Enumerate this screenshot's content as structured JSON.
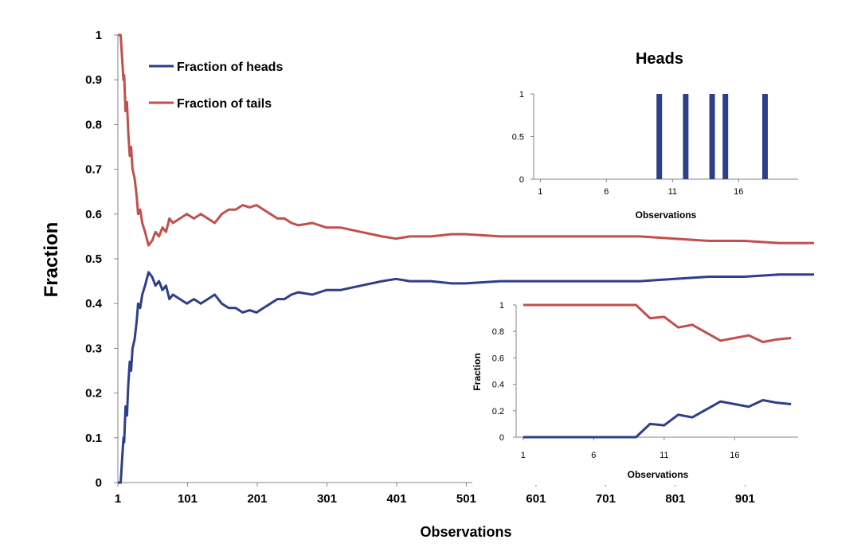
{
  "chart_data": [
    {
      "type": "line",
      "title": "",
      "xlabel": "Observations",
      "ylabel": "Fraction",
      "xlim": [
        1,
        1000
      ],
      "ylim": [
        0,
        1
      ],
      "x_ticks": [
        "1",
        "101",
        "201",
        "301",
        "401",
        "501",
        "601",
        "701",
        "801",
        "901"
      ],
      "y_ticks": [
        "0",
        "0.1",
        "0.2",
        "0.3",
        "0.4",
        "0.5",
        "0.6",
        "0.7",
        "0.8",
        "0.9",
        "1"
      ],
      "grid": false,
      "legend_position": "top-left",
      "colors": {
        "heads": "#2e3f8a",
        "tails": "#c0504d"
      },
      "series": [
        {
          "name": "Fraction of heads",
          "x": [
            1,
            5,
            9,
            10,
            12,
            14,
            16,
            18,
            20,
            22,
            25,
            28,
            30,
            33,
            36,
            40,
            45,
            50,
            55,
            60,
            65,
            70,
            75,
            80,
            90,
            100,
            110,
            120,
            130,
            140,
            150,
            160,
            170,
            180,
            190,
            200,
            210,
            220,
            230,
            240,
            250,
            260,
            280,
            300,
            320,
            350,
            380,
            400,
            420,
            450,
            480,
            500,
            550,
            600,
            650,
            700,
            750,
            800,
            850,
            900,
            950,
            1000
          ],
          "values": [
            0,
            0,
            0.1,
            0.09,
            0.17,
            0.15,
            0.22,
            0.27,
            0.25,
            0.3,
            0.32,
            0.36,
            0.4,
            0.39,
            0.42,
            0.44,
            0.47,
            0.46,
            0.44,
            0.45,
            0.43,
            0.44,
            0.41,
            0.42,
            0.41,
            0.4,
            0.41,
            0.4,
            0.41,
            0.42,
            0.4,
            0.39,
            0.39,
            0.38,
            0.385,
            0.38,
            0.39,
            0.4,
            0.41,
            0.41,
            0.42,
            0.425,
            0.42,
            0.43,
            0.43,
            0.44,
            0.45,
            0.455,
            0.45,
            0.45,
            0.445,
            0.445,
            0.45,
            0.45,
            0.45,
            0.45,
            0.45,
            0.455,
            0.46,
            0.46,
            0.465,
            0.465
          ]
        },
        {
          "name": "Fraction of tails",
          "x": [
            1,
            5,
            9,
            10,
            12,
            14,
            16,
            18,
            20,
            22,
            25,
            28,
            30,
            33,
            36,
            40,
            45,
            50,
            55,
            60,
            65,
            70,
            75,
            80,
            90,
            100,
            110,
            120,
            130,
            140,
            150,
            160,
            170,
            180,
            190,
            200,
            210,
            220,
            230,
            240,
            250,
            260,
            280,
            300,
            320,
            350,
            380,
            400,
            420,
            450,
            480,
            500,
            550,
            600,
            650,
            700,
            750,
            800,
            850,
            900,
            950,
            1000
          ],
          "values": [
            1,
            1,
            0.9,
            0.91,
            0.83,
            0.85,
            0.78,
            0.73,
            0.75,
            0.7,
            0.68,
            0.64,
            0.6,
            0.61,
            0.58,
            0.56,
            0.53,
            0.54,
            0.56,
            0.55,
            0.57,
            0.56,
            0.59,
            0.58,
            0.59,
            0.6,
            0.59,
            0.6,
            0.59,
            0.58,
            0.6,
            0.61,
            0.61,
            0.62,
            0.615,
            0.62,
            0.61,
            0.6,
            0.59,
            0.59,
            0.58,
            0.575,
            0.58,
            0.57,
            0.57,
            0.56,
            0.55,
            0.545,
            0.55,
            0.55,
            0.555,
            0.555,
            0.55,
            0.55,
            0.55,
            0.55,
            0.55,
            0.545,
            0.54,
            0.54,
            0.535,
            0.535
          ]
        }
      ]
    },
    {
      "type": "bar",
      "title": "Heads",
      "xlabel": "Observations",
      "ylabel": "",
      "xlim": [
        1,
        20
      ],
      "ylim": [
        0,
        1
      ],
      "x_ticks": [
        "1",
        "6",
        "11",
        "16"
      ],
      "y_ticks": [
        "0",
        "0.5",
        "1"
      ],
      "categories": [
        1,
        2,
        3,
        4,
        5,
        6,
        7,
        8,
        9,
        10,
        11,
        12,
        13,
        14,
        15,
        16,
        17,
        18,
        19,
        20
      ],
      "values": [
        0,
        0,
        0,
        0,
        0,
        0,
        0,
        0,
        0,
        1,
        0,
        1,
        0,
        1,
        1,
        0,
        0,
        1,
        0,
        0
      ],
      "color": "#2e3f8a"
    },
    {
      "type": "line",
      "title": "",
      "xlabel": "Observations",
      "ylabel": "Fraction",
      "xlim": [
        1,
        20
      ],
      "ylim": [
        0,
        1
      ],
      "x_ticks": [
        "1",
        "6",
        "11",
        "16"
      ],
      "y_ticks": [
        "0",
        "0.2",
        "0.4",
        "0.6",
        "0.8",
        "1"
      ],
      "series": [
        {
          "color": "#2e3f8a",
          "x": [
            1,
            2,
            3,
            4,
            5,
            6,
            7,
            8,
            9,
            10,
            11,
            12,
            13,
            14,
            15,
            16,
            17,
            18,
            19,
            20
          ],
          "values": [
            0,
            0,
            0,
            0,
            0,
            0,
            0,
            0,
            0,
            0.1,
            0.09,
            0.17,
            0.15,
            0.21,
            0.27,
            0.25,
            0.23,
            0.28,
            0.26,
            0.25
          ]
        },
        {
          "color": "#c0504d",
          "x": [
            1,
            2,
            3,
            4,
            5,
            6,
            7,
            8,
            9,
            10,
            11,
            12,
            13,
            14,
            15,
            16,
            17,
            18,
            19,
            20
          ],
          "values": [
            1,
            1,
            1,
            1,
            1,
            1,
            1,
            1,
            1,
            0.9,
            0.91,
            0.83,
            0.85,
            0.79,
            0.73,
            0.75,
            0.77,
            0.72,
            0.74,
            0.75
          ]
        }
      ]
    }
  ]
}
